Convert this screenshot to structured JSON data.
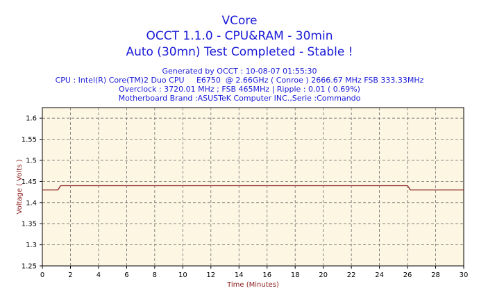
{
  "chart_data": {
    "type": "line",
    "title": "VCore",
    "subtitle_lines": [
      "OCCT 1.1.0 - CPU&RAM - 30min",
      "Auto (30mn) Test Completed - Stable !"
    ],
    "info_lines": [
      "Generated by OCCT : 10-08-07 01:55:30",
      "CPU : Intel(R) Core(TM)2 Duo CPU     E6750  @ 2.66GHz ( Conroe ) 2666.67 MHz FSB 333.33MHz",
      "Overclock : 3720.01 MHz ; FSB 465MHz | Ripple : 0.01 ( 0.69%)",
      "Motherboard Brand :ASUSTeK Computer INC.,Serie :Commando"
    ],
    "xlabel": "Time (Minutes)",
    "ylabel": "Voltage ( Volts )",
    "xlim": [
      0,
      30
    ],
    "ylim": [
      1.25,
      1.625
    ],
    "xticks": [
      "0",
      "2",
      "4",
      "6",
      "8",
      "10",
      "12",
      "14",
      "16",
      "18",
      "20",
      "22",
      "24",
      "26",
      "28",
      "30"
    ],
    "yticks": [
      "1.25",
      "1.3",
      "1.35",
      "1.4",
      "1.45",
      "1.5",
      "1.55",
      "1.6"
    ],
    "grid": true,
    "colors": {
      "line": "#8b1a1a",
      "plot_background": "#fdf6e3",
      "grid": "#6b6b6b",
      "title": "#1a1ad8",
      "axis_label": "#8b1a1a"
    },
    "series": [
      {
        "x": [
          0,
          1.1,
          1.3,
          26.0,
          26.2,
          30
        ],
        "y": [
          1.43,
          1.43,
          1.44,
          1.44,
          1.43,
          1.43
        ]
      }
    ]
  }
}
